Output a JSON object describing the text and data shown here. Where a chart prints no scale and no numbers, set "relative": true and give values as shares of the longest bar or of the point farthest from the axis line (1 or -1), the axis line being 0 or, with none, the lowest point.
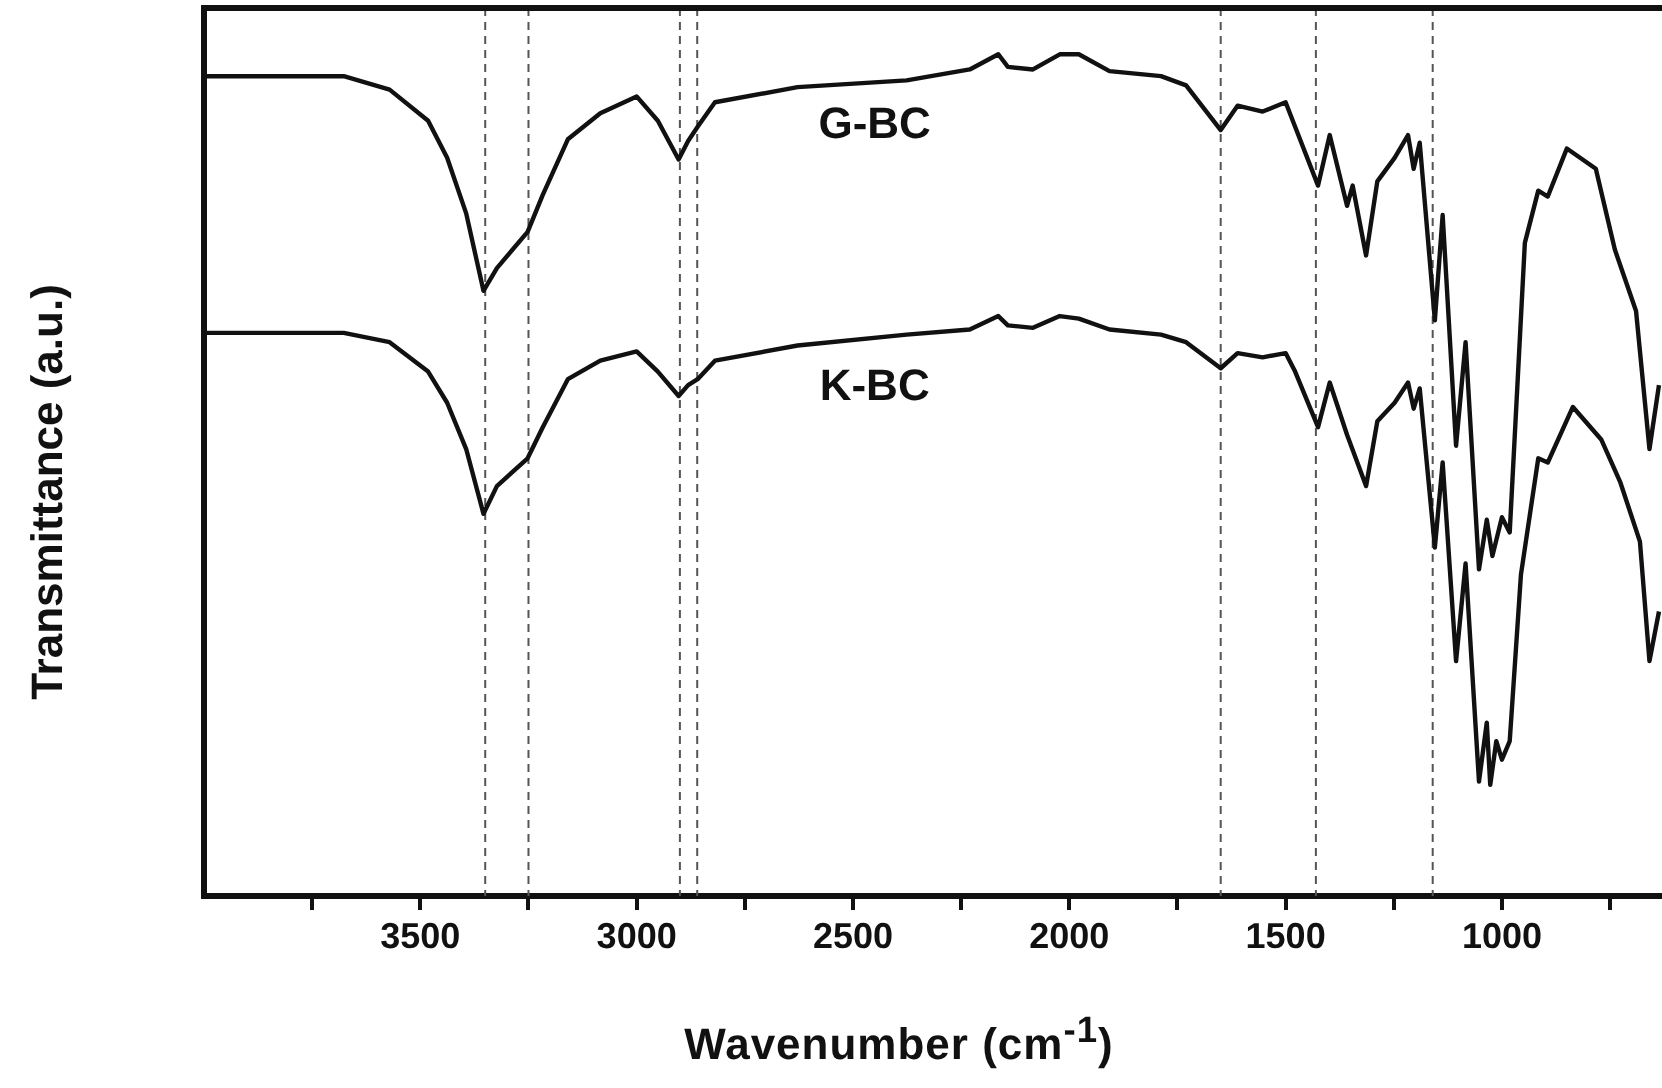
{
  "chart_data": {
    "type": "line",
    "relative": true,
    "xlabel": "Wavenumber (cm$^{-1}$)",
    "ylabel": "Transmittance (a.u.)",
    "xlim": [
      4000,
      630
    ],
    "xticks": [
      {
        "value": 3750,
        "label": null
      },
      3500,
      {
        "value": 3250,
        "label": null
      },
      3000,
      {
        "value": 2750,
        "label": null
      },
      2500,
      {
        "value": 2250,
        "label": null
      },
      2000,
      {
        "value": 1750,
        "label": null
      },
      1500,
      {
        "value": 1250,
        "label": null
      },
      1000,
      {
        "value": 750,
        "label": null
      }
    ],
    "grid": false,
    "legend": false,
    "marker": "none",
    "line_style": "solid",
    "ref_lines": [
      {
        "axis": "x",
        "value": 3350,
        "color": "#555555",
        "line_style": "dashed"
      },
      {
        "axis": "x",
        "value": 3250,
        "color": "#555555",
        "line_style": "dashed"
      },
      {
        "axis": "x",
        "value": 2900,
        "color": "#555555",
        "line_style": "dashed"
      },
      {
        "axis": "x",
        "value": 2860,
        "color": "#555555",
        "line_style": "dashed"
      },
      {
        "axis": "x",
        "value": 1650,
        "color": "#555555",
        "line_style": "dashed"
      },
      {
        "axis": "x",
        "value": 1430,
        "color": "#555555",
        "line_style": "dashed"
      },
      {
        "axis": "x",
        "value": 1160,
        "color": "#555555",
        "line_style": "dashed"
      }
    ],
    "series": [
      {
        "name": "G-BC",
        "color": "#111111",
        "x": [
          4000,
          3677,
          3571,
          3482,
          3438,
          3394,
          3354,
          3323,
          3252,
          3217,
          3159,
          3084,
          3000,
          2951,
          2903,
          2881,
          2859,
          2819,
          2628,
          2376,
          2230,
          2164,
          2142,
          2084,
          2022,
          1978,
          1907,
          1788,
          1730,
          1650,
          1611,
          1553,
          1500,
          1478,
          1425,
          1398,
          1358,
          1345,
          1314,
          1288,
          1248,
          1217,
          1204,
          1190,
          1155,
          1137,
          1106,
          1084,
          1053,
          1035,
          1022,
          1000,
          982,
          947,
          916,
          894,
          850,
          783,
          739,
          690,
          659,
          637
        ],
        "values": [
          0.974,
          0.974,
          0.958,
          0.921,
          0.877,
          0.811,
          0.719,
          0.746,
          0.789,
          0.833,
          0.899,
          0.93,
          0.95,
          0.921,
          0.875,
          0.897,
          0.914,
          0.943,
          0.961,
          0.969,
          0.982,
          1,
          0.985,
          0.982,
          1,
          1,
          0.98,
          0.974,
          0.963,
          0.91,
          0.939,
          0.932,
          0.943,
          0.914,
          0.844,
          0.904,
          0.82,
          0.844,
          0.761,
          0.849,
          0.877,
          0.904,
          0.864,
          0.895,
          0.684,
          0.809,
          0.535,
          0.658,
          0.388,
          0.447,
          0.404,
          0.45,
          0.432,
          0.776,
          0.838,
          0.831,
          0.888,
          0.864,
          0.768,
          0.695,
          0.531,
          0.607
        ]
      },
      {
        "name": "K-BC",
        "color": "#111111",
        "x": [
          4000,
          3677,
          3571,
          3482,
          3438,
          3394,
          3354,
          3323,
          3252,
          3217,
          3159,
          3084,
          3000,
          2951,
          2903,
          2881,
          2859,
          2819,
          2628,
          2376,
          2230,
          2164,
          2142,
          2084,
          2022,
          1978,
          1907,
          1788,
          1730,
          1650,
          1611,
          1553,
          1500,
          1478,
          1425,
          1398,
          1358,
          1314,
          1288,
          1248,
          1217,
          1204,
          1190,
          1155,
          1137,
          1106,
          1084,
          1053,
          1035,
          1027,
          1013,
          1000,
          982,
          956,
          916,
          894,
          836,
          770,
          726,
          681,
          659,
          637
        ],
        "values": [
          0.669,
          0.669,
          0.658,
          0.623,
          0.586,
          0.531,
          0.454,
          0.487,
          0.52,
          0.557,
          0.614,
          0.636,
          0.647,
          0.623,
          0.594,
          0.607,
          0.614,
          0.636,
          0.654,
          0.667,
          0.673,
          0.689,
          0.678,
          0.675,
          0.689,
          0.686,
          0.673,
          0.667,
          0.658,
          0.627,
          0.645,
          0.64,
          0.645,
          0.623,
          0.557,
          0.61,
          0.548,
          0.487,
          0.564,
          0.586,
          0.61,
          0.579,
          0.603,
          0.414,
          0.515,
          0.279,
          0.395,
          0.136,
          0.206,
          0.132,
          0.184,
          0.162,
          0.184,
          0.382,
          0.52,
          0.515,
          0.581,
          0.542,
          0.491,
          0.421,
          0.279,
          0.338
        ]
      }
    ]
  }
}
